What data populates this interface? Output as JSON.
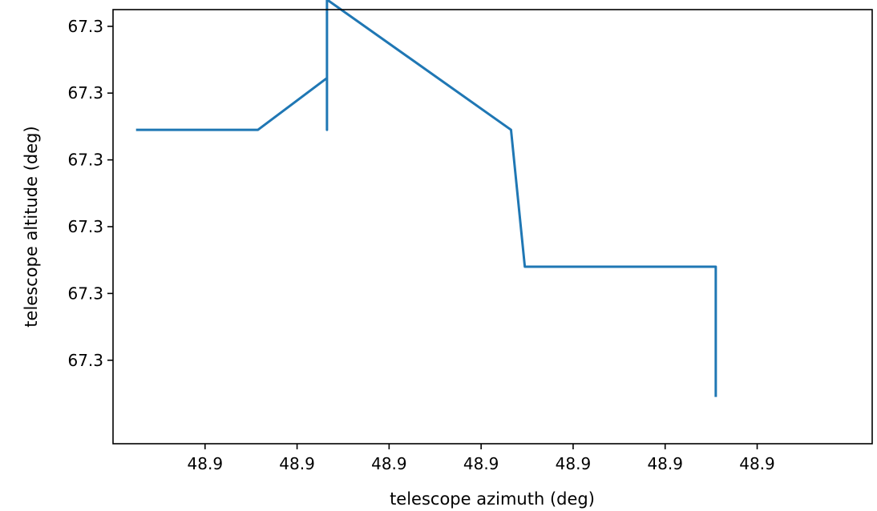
{
  "chart_data": {
    "type": "line",
    "title": "",
    "xlabel": "telescope azimuth (deg)",
    "ylabel": "telescope altitude (deg)",
    "xlim": [
      48.8854,
      48.8887
    ],
    "ylim": [
      67.29935,
      67.30065
    ],
    "x_ticks": [
      {
        "value": 48.8858,
        "label": "48.9"
      },
      {
        "value": 48.8862,
        "label": "48.9"
      },
      {
        "value": 48.8866,
        "label": "48.9"
      },
      {
        "value": 48.887,
        "label": "48.9"
      },
      {
        "value": 48.8874,
        "label": "48.9"
      },
      {
        "value": 48.8878,
        "label": "48.9"
      },
      {
        "value": 48.8882,
        "label": "48.9"
      }
    ],
    "y_ticks": [
      {
        "value": 67.3006,
        "label": "67.3"
      },
      {
        "value": 67.3004,
        "label": "67.3"
      },
      {
        "value": 67.3002,
        "label": "67.3"
      },
      {
        "value": 67.3,
        "label": "67.3"
      },
      {
        "value": 67.2998,
        "label": "67.3"
      },
      {
        "value": 67.2996,
        "label": "67.3"
      }
    ],
    "grid": false,
    "color": "#1f77b4",
    "series": [
      {
        "x": [
          48.8855,
          48.88603,
          48.88633,
          48.88633,
          48.88633,
          48.88713,
          48.88719,
          48.88802,
          48.88802
        ],
        "y": [
          67.30029,
          67.30029,
          67.300445,
          67.30029,
          67.30068,
          67.30029,
          67.29988,
          67.29988,
          67.29949
        ]
      }
    ]
  }
}
